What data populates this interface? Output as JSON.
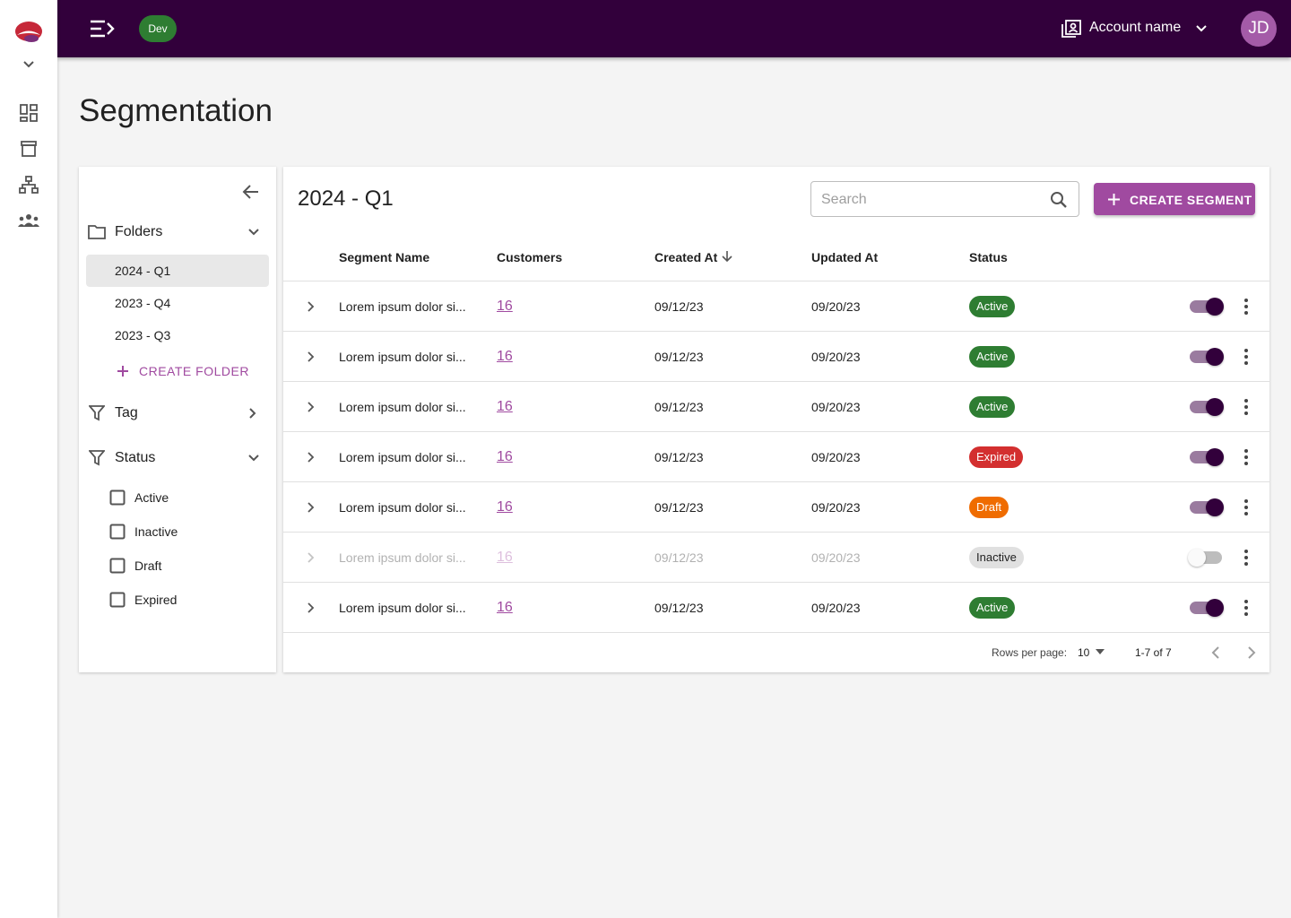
{
  "topbar": {
    "env": "Dev",
    "account": "Account name",
    "avatar": "JD"
  },
  "page": {
    "title": "Segmentation"
  },
  "sidebar": {
    "folders": {
      "title": "Folders",
      "items": [
        "2024 - Q1",
        "2023 - Q4",
        "2023 - Q3"
      ],
      "create": "CREATE FOLDER"
    },
    "tag": {
      "title": "Tag"
    },
    "status": {
      "title": "Status",
      "options": [
        "Active",
        "Inactive",
        "Draft",
        "Expired"
      ]
    }
  },
  "table": {
    "title": "2024 - Q1",
    "search_placeholder": "Search",
    "create_button": "CREATE SEGMENT",
    "columns": [
      "Segment Name",
      "Customers",
      "Created At",
      "Updated At",
      "Status"
    ],
    "rows": [
      {
        "name": "Lorem ipsum dolor si...",
        "customers": "16",
        "created": "09/12/23",
        "updated": "09/20/23",
        "status": "Active",
        "status_color": "#2e7d32",
        "enabled": true
      },
      {
        "name": "Lorem ipsum dolor si...",
        "customers": "16",
        "created": "09/12/23",
        "updated": "09/20/23",
        "status": "Active",
        "status_color": "#2e7d32",
        "enabled": true
      },
      {
        "name": "Lorem ipsum dolor si...",
        "customers": "16",
        "created": "09/12/23",
        "updated": "09/20/23",
        "status": "Active",
        "status_color": "#2e7d32",
        "enabled": true
      },
      {
        "name": "Lorem ipsum dolor si...",
        "customers": "16",
        "created": "09/12/23",
        "updated": "09/20/23",
        "status": "Expired",
        "status_color": "#d32f2f",
        "enabled": true
      },
      {
        "name": "Lorem ipsum dolor si...",
        "customers": "16",
        "created": "09/12/23",
        "updated": "09/20/23",
        "status": "Draft",
        "status_color": "#ef6c00",
        "enabled": true
      },
      {
        "name": "Lorem ipsum dolor si...",
        "customers": "16",
        "created": "09/12/23",
        "updated": "09/20/23",
        "status": "Inactive",
        "status_color": "#e0e0e0",
        "enabled": false
      },
      {
        "name": "Lorem ipsum dolor si...",
        "customers": "16",
        "created": "09/12/23",
        "updated": "09/20/23",
        "status": "Active",
        "status_color": "#2e7d32",
        "enabled": true
      }
    ],
    "footer": {
      "rows_per_page_label": "Rows per page:",
      "rows_per_page": 10,
      "range": "1-7 of 7"
    }
  }
}
